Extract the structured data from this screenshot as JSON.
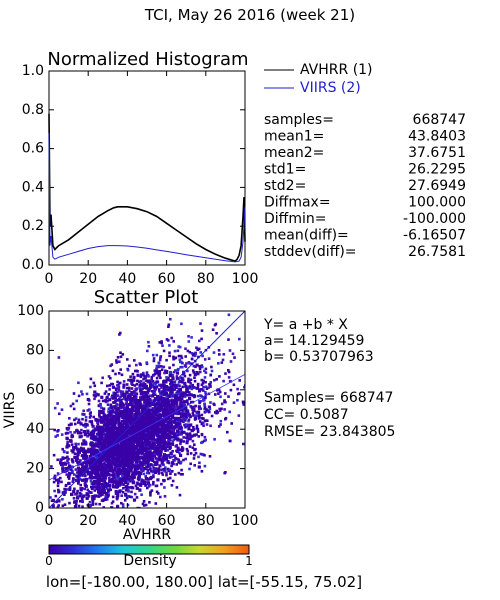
{
  "page_title": "TCI,  May 26 2016 (week 21)",
  "histogram": {
    "title": "Normalized Histogram",
    "legend": [
      {
        "label": "AVHRR (1)",
        "color": "#000000"
      },
      {
        "label": "VIIRS (2)",
        "color": "#1f1fd0"
      }
    ],
    "stats": [
      {
        "label": "samples=",
        "value": "668747"
      },
      {
        "label": "mean1=",
        "value": "43.8403"
      },
      {
        "label": "mean2=",
        "value": "37.6751"
      },
      {
        "label": "std1=",
        "value": "26.2295"
      },
      {
        "label": "std2=",
        "value": "27.6949"
      },
      {
        "label": "Diffmax=",
        "value": "100.000"
      },
      {
        "label": "Diffmin=",
        "value": "-100.000"
      },
      {
        "label": "mean(diff)=",
        "value": "-6.16507"
      },
      {
        "label": "stddev(diff)=",
        "value": "26.7581"
      }
    ]
  },
  "scatter": {
    "title": "Scatter Plot",
    "regression": {
      "equation": "Y= a +b * X",
      "a": "a= 14.129459",
      "b": "b= 0.53707963"
    },
    "metrics": {
      "samples": "Samples= 668747",
      "cc": "CC=  0.5087",
      "rmse": "RMSE= 23.843805"
    }
  },
  "colorbar": {
    "label": "Density",
    "min": "0",
    "max": "1",
    "colors": [
      "#3a00a8",
      "#2f2fd6",
      "#1f7ef0",
      "#1cc8d8",
      "#2fd68a",
      "#6ad840",
      "#c6d830",
      "#f0a020",
      "#f05a10"
    ]
  },
  "footer": "lon=[-180.00, 180.00] lat=[-55.15, 75.02]",
  "chart_data": [
    {
      "type": "line",
      "title": "Normalized Histogram",
      "xlim": [
        0,
        100
      ],
      "ylim": [
        0,
        1.0
      ],
      "x_ticks": [
        0,
        20,
        40,
        60,
        80,
        100
      ],
      "y_ticks": [
        "0.0",
        "0.2",
        "0.4",
        "0.6",
        "0.8",
        "1.0"
      ],
      "series": [
        {
          "name": "AVHRR (1)",
          "color": "#000000",
          "x": [
            0,
            0.5,
            1,
            2,
            3,
            4,
            5,
            10,
            15,
            20,
            25,
            30,
            33,
            35,
            38,
            40,
            45,
            50,
            55,
            60,
            65,
            70,
            75,
            80,
            85,
            90,
            95,
            96,
            97,
            98,
            99,
            99.5,
            100
          ],
          "y": [
            0.78,
            0.2,
            0.26,
            0.1,
            0.08,
            0.09,
            0.1,
            0.13,
            0.17,
            0.21,
            0.25,
            0.28,
            0.295,
            0.3,
            0.3,
            0.3,
            0.29,
            0.275,
            0.25,
            0.215,
            0.18,
            0.145,
            0.11,
            0.08,
            0.055,
            0.035,
            0.02,
            0.03,
            0.05,
            0.1,
            0.25,
            0.35,
            0.12
          ]
        },
        {
          "name": "VIIRS (2)",
          "color": "#1f1fd0",
          "x": [
            0,
            0.5,
            1,
            2,
            3,
            5,
            10,
            15,
            20,
            25,
            30,
            35,
            40,
            45,
            50,
            55,
            60,
            65,
            70,
            75,
            80,
            85,
            90,
            95,
            97,
            98,
            99,
            100
          ],
          "y": [
            0.68,
            0.1,
            0.15,
            0.04,
            0.03,
            0.04,
            0.055,
            0.07,
            0.085,
            0.095,
            0.1,
            0.1,
            0.098,
            0.093,
            0.086,
            0.078,
            0.07,
            0.062,
            0.053,
            0.045,
            0.037,
            0.03,
            0.022,
            0.016,
            0.02,
            0.04,
            0.12,
            0.3
          ]
        }
      ]
    },
    {
      "type": "scatter",
      "title": "Scatter Plot",
      "xlabel": "AVHRR",
      "ylabel": "VIIRS",
      "xlim": [
        0,
        100
      ],
      "ylim": [
        0,
        100
      ],
      "x_ticks": [
        0,
        20,
        40,
        60,
        80,
        100
      ],
      "y_ticks": [
        0,
        20,
        40,
        60,
        80,
        100
      ],
      "samples": 668747,
      "regression": {
        "a": 14.129459,
        "b": 0.53707963
      },
      "reference_line": {
        "x": [
          0,
          100
        ],
        "y": [
          0,
          100
        ]
      },
      "regression_line": {
        "x": [
          0,
          100
        ],
        "y": [
          14.13,
          67.84
        ]
      }
    }
  ]
}
